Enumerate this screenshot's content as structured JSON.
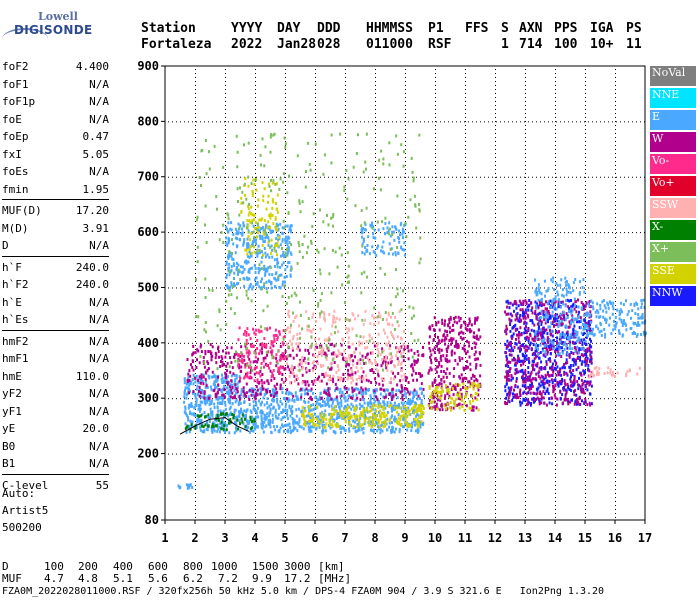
{
  "logo": {
    "line1": "Lowell",
    "line2": "DIGISONDE"
  },
  "header": {
    "labels": [
      "Station",
      "YYYY",
      "DAY",
      "DDD",
      "HHMMSS",
      "P1",
      "FFS",
      "S",
      "AXN",
      "PPS",
      "IGA",
      "PS"
    ],
    "values": [
      "Fortaleza",
      "2022",
      "Jan28",
      "028",
      "011000",
      "RSF",
      "",
      "1",
      "714",
      "100",
      "10+",
      "11"
    ]
  },
  "params": {
    "group1": [
      {
        "name": "foF2",
        "value": "4.400"
      },
      {
        "name": "foF1",
        "value": "N/A"
      },
      {
        "name": "foF1p",
        "value": "N/A"
      },
      {
        "name": "foE",
        "value": "N/A"
      },
      {
        "name": "foEp",
        "value": "0.47"
      },
      {
        "name": "fxI",
        "value": "5.05"
      },
      {
        "name": "foEs",
        "value": "N/A"
      },
      {
        "name": "fmin",
        "value": "1.95"
      }
    ],
    "group2": [
      {
        "name": "MUF(D)",
        "value": "17.20"
      },
      {
        "name": "M(D)",
        "value": "3.91"
      },
      {
        "name": "D",
        "value": "N/A"
      }
    ],
    "group3": [
      {
        "name": "h`F",
        "value": "240.0"
      },
      {
        "name": "h`F2",
        "value": "240.0"
      },
      {
        "name": "h`E",
        "value": "N/A"
      },
      {
        "name": "h`Es",
        "value": "N/A"
      }
    ],
    "group4": [
      {
        "name": "hmF2",
        "value": "N/A"
      },
      {
        "name": "hmF1",
        "value": "N/A"
      },
      {
        "name": "hmE",
        "value": "110.0"
      },
      {
        "name": "yF2",
        "value": "N/A"
      },
      {
        "name": "yF1",
        "value": "N/A"
      },
      {
        "name": "yE",
        "value": "20.0"
      },
      {
        "name": "B0",
        "value": "N/A"
      },
      {
        "name": "B1",
        "value": "N/A"
      }
    ],
    "group5": [
      {
        "name": "C-level",
        "value": "55"
      }
    ]
  },
  "auto": {
    "line1": "Auto:",
    "line2": "Artist5",
    "line3": "500200"
  },
  "legend": [
    {
      "label": "NoVal",
      "color": "#7f7f7f"
    },
    {
      "label": "NNE",
      "color": "#00e5ff"
    },
    {
      "label": "E",
      "color": "#4aa8ff"
    },
    {
      "label": "W",
      "color": "#b0008c"
    },
    {
      "label": "Vo-",
      "color": "#ff2a8c"
    },
    {
      "label": "Vo+",
      "color": "#e0002a"
    },
    {
      "label": "SSW",
      "color": "#ffb0b0"
    },
    {
      "label": "X-",
      "color": "#008000"
    },
    {
      "label": "X+",
      "color": "#7cbf5a"
    },
    {
      "label": "SSE",
      "color": "#d2d200"
    },
    {
      "label": "NNW",
      "color": "#1a1aff"
    }
  ],
  "footer": {
    "d_label": "D",
    "d_values": [
      "100",
      "200",
      "400",
      "600",
      "800",
      "1000",
      "1500",
      "3000"
    ],
    "d_unit": "[km]",
    "muf_label": "MUF",
    "muf_values": [
      "4.7",
      "4.8",
      "5.1",
      "5.6",
      "6.2",
      "7.2",
      "9.9",
      "17.2"
    ],
    "muf_unit": "[MHz]",
    "info": "FZA0M_2022028011000.RSF / 320fx256h 50 kHz 5.0 km / DPS-4 FZA0M 904 / 3.9 S 321.6 E   Ion2Png 1.3.20"
  },
  "chart_data": {
    "type": "scatter",
    "xlim": [
      1,
      17
    ],
    "ylim": [
      80,
      900
    ],
    "xticks": [
      1,
      2,
      3,
      4,
      5,
      6,
      7,
      8,
      9,
      10,
      11,
      12,
      13,
      14,
      15,
      16,
      17
    ],
    "yticks": [
      80,
      200,
      300,
      400,
      500,
      600,
      700,
      800,
      900
    ],
    "grid": true,
    "legend_position": "right",
    "trace": {
      "x": [
        1.5,
        2.0,
        2.5,
        3.0,
        3.4,
        3.8
      ],
      "y": [
        235,
        250,
        262,
        265,
        250,
        240
      ]
    },
    "regions": [
      {
        "x": [
          1.35,
          1.95
        ],
        "y": [
          140,
          148
        ],
        "color": "#4aa8ff",
        "density": 0.9
      },
      {
        "x": [
          1.6,
          3.5
        ],
        "y": [
          240,
          345
        ],
        "color": "#4aa8ff",
        "density": 0.7
      },
      {
        "x": [
          3.5,
          9.6
        ],
        "y": [
          240,
          320
        ],
        "color": "#4aa8ff",
        "density": 0.6
      },
      {
        "x": [
          5.5,
          9.6
        ],
        "y": [
          250,
          290
        ],
        "color": "#d2d200",
        "density": 0.55
      },
      {
        "x": [
          1.6,
          4.0
        ],
        "y": [
          245,
          275
        ],
        "color": "#008000",
        "density": 0.3
      },
      {
        "x": [
          1.7,
          9.6
        ],
        "y": [
          300,
          400
        ],
        "color": "#b0008c",
        "density": 0.25
      },
      {
        "x": [
          3.4,
          5.0
        ],
        "y": [
          330,
          430
        ],
        "color": "#ff2a8c",
        "density": 0.3
      },
      {
        "x": [
          5.0,
          9.0
        ],
        "y": [
          330,
          460
        ],
        "color": "#ffb0b0",
        "density": 0.2
      },
      {
        "x": [
          3.0,
          5.2
        ],
        "y": [
          500,
          620
        ],
        "color": "#4aa8ff",
        "density": 0.45
      },
      {
        "x": [
          3.5,
          4.8
        ],
        "y": [
          560,
          700
        ],
        "color": "#d2d200",
        "density": 0.2
      },
      {
        "x": [
          7.5,
          9.0
        ],
        "y": [
          560,
          620
        ],
        "color": "#4aa8ff",
        "density": 0.35
      },
      {
        "x": [
          9.75,
          11.5
        ],
        "y": [
          280,
          450
        ],
        "color": "#b0008c",
        "density": 0.4
      },
      {
        "x": [
          9.75,
          11.5
        ],
        "y": [
          280,
          330
        ],
        "color": "#d2d200",
        "density": 0.35
      },
      {
        "x": [
          12.3,
          15.2
        ],
        "y": [
          290,
          480
        ],
        "color": "#1a1aff",
        "density": 0.4
      },
      {
        "x": [
          12.3,
          15.2
        ],
        "y": [
          290,
          480
        ],
        "color": "#b0008c",
        "density": 0.3
      },
      {
        "x": [
          13.3,
          15.0
        ],
        "y": [
          380,
          520
        ],
        "color": "#4aa8ff",
        "density": 0.3
      },
      {
        "x": [
          15.0,
          17.0
        ],
        "y": [
          410,
          480
        ],
        "color": "#4aa8ff",
        "density": 0.4
      },
      {
        "x": [
          15.0,
          16.8
        ],
        "y": [
          340,
          360
        ],
        "color": "#ffb0b0",
        "density": 0.3
      },
      {
        "x": [
          2.0,
          9.5
        ],
        "y": [
          350,
          780
        ],
        "color": "#7cbf5a",
        "density": 0.04
      }
    ]
  }
}
